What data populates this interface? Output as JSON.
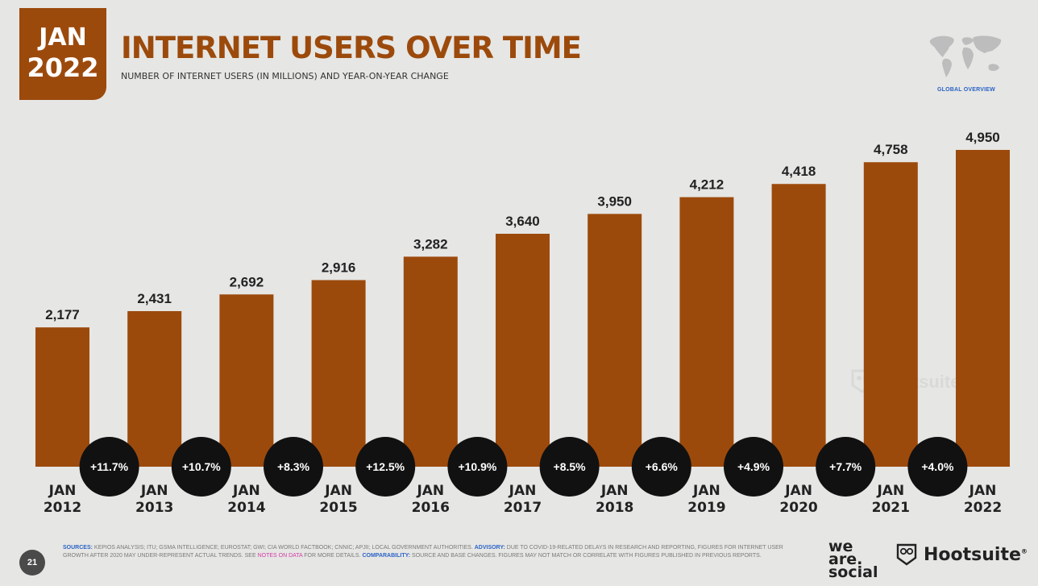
{
  "header": {
    "badge_month": "JAN",
    "badge_year": "2022",
    "title": "INTERNET USERS OVER TIME",
    "subtitle": "NUMBER OF INTERNET USERS (IN MILLIONS) AND YEAR-ON-YEAR CHANGE",
    "global_overview": "GLOBAL OVERVIEW"
  },
  "colors": {
    "brand": "#9c4a0c",
    "background": "#e6e6e4",
    "change_bubble": "#111111",
    "link": "#2b63c6"
  },
  "watermark": {
    "we": "we",
    "are": "are",
    "social": "social",
    "hootsuite": "Hootsuite"
  },
  "chart_data": {
    "type": "bar",
    "categories": [
      "JAN 2012",
      "JAN 2013",
      "JAN 2014",
      "JAN 2015",
      "JAN 2016",
      "JAN 2017",
      "JAN 2018",
      "JAN 2019",
      "JAN 2020",
      "JAN 2021",
      "JAN 2022"
    ],
    "values": [
      2177,
      2431,
      2692,
      2916,
      3282,
      3640,
      3950,
      4212,
      4418,
      4758,
      4950
    ],
    "value_labels": [
      "2,177",
      "2,431",
      "2,692",
      "2,916",
      "3,282",
      "3,640",
      "3,950",
      "4,212",
      "4,418",
      "4,758",
      "4,950"
    ],
    "yoy_change": [
      "+11.7%",
      "+10.7%",
      "+8.3%",
      "+12.5%",
      "+10.9%",
      "+8.5%",
      "+6.6%",
      "+4.9%",
      "+7.7%",
      "+4.0%"
    ],
    "ylim": [
      0,
      5000
    ],
    "title": "INTERNET USERS OVER TIME",
    "xlabel": "",
    "ylabel": "",
    "grid": false
  },
  "footer": {
    "page_number": "21",
    "sources_label": "SOURCES:",
    "sources_text": " KEPIOS ANALYSIS; ITU; GSMA INTELLIGENCE; EUROSTAT; GWI; CIA WORLD FACTBOOK; CNNIC; APJII; LOCAL GOVERNMENT AUTHORITIES. ",
    "advisory_label": "ADVISORY:",
    "advisory_text": " DUE TO COVID-19-RELATED DELAYS IN RESEARCH AND REPORTING, FIGURES FOR INTERNET USER GROWTH AFTER 2020 MAY UNDER-REPRESENT ACTUAL TRENDS. SEE ",
    "notes_link": "NOTES ON DATA",
    "notes_after": " FOR MORE DETAILS. ",
    "comparability_label": "COMPARABILITY:",
    "comparability_text": " SOURCE AND BASE CHANGES. FIGURES MAY NOT MATCH OR CORRELATE WITH FIGURES PUBLISHED IN PREVIOUS REPORTS.",
    "logo_we": "we",
    "logo_are": "are.",
    "logo_social": "social",
    "logo_hootsuite": "Hootsuite",
    "logo_hootsuite_mark": "®"
  }
}
